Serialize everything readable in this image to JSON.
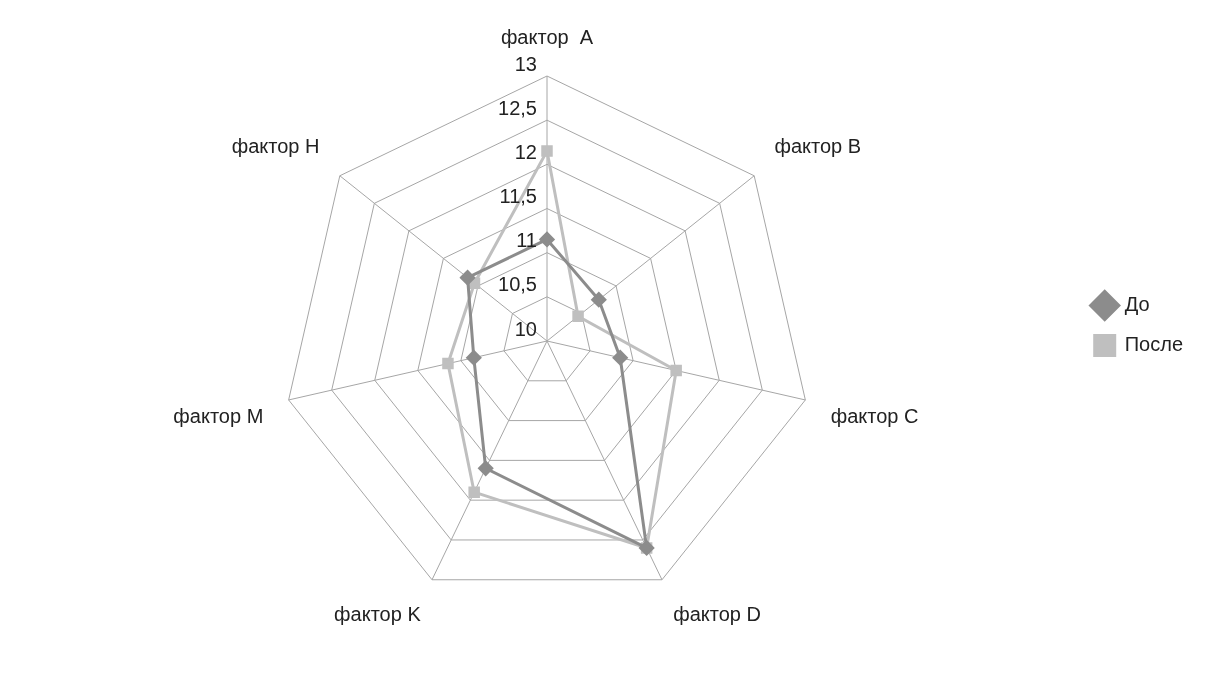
{
  "chart_data": {
    "type": "radar",
    "categories": [
      "фактор  A",
      "фактор B",
      "фактор C",
      "фактор D",
      "фактор K",
      "фактор M",
      "фактор H"
    ],
    "ylim": [
      10,
      13
    ],
    "yticks": [
      10,
      {
        "value": 10.5,
        "label": "10,5"
      },
      11,
      {
        "value": 11.5,
        "label": "11,5"
      },
      12,
      {
        "value": 12.5,
        "label": "12,5"
      },
      13
    ],
    "grid": true,
    "legend": "right",
    "series": [
      {
        "name": "До",
        "color": "#8c8c8c",
        "marker": "diamond",
        "values": [
          11.15,
          10.75,
          10.85,
          12.6,
          11.6,
          10.85,
          11.15
        ]
      },
      {
        "name": "После",
        "color": "#bfbfbf",
        "marker": "square",
        "values": [
          12.15,
          10.45,
          11.5,
          12.6,
          11.9,
          11.15,
          11.05
        ]
      }
    ]
  }
}
